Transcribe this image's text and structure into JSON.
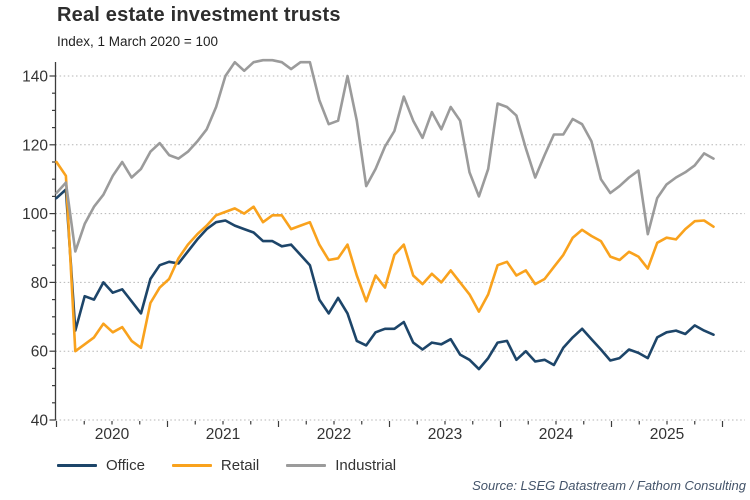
{
  "header": {
    "title": "Real estate investment trusts",
    "subtitle": "Index, 1 March 2020 = 100"
  },
  "source": "Source: LSEG Datastream / Fathom Consulting",
  "colors": {
    "office": "#1d4569",
    "retail": "#f9a21d",
    "industrial": "#9b9b9b",
    "grid": "#b5b5b5",
    "axis": "#3c3c3c",
    "tick_label": "#333333",
    "source_text": "#44546a"
  },
  "legend": [
    {
      "label": "Office",
      "color_key": "office"
    },
    {
      "label": "Retail",
      "color_key": "retail"
    },
    {
      "label": "Industrial",
      "color_key": "industrial"
    }
  ],
  "chart_data": {
    "type": "line",
    "title": "Real estate investment trusts",
    "subtitle": "Index, 1 March 2020 = 100",
    "x_unit": "month",
    "x_start": "2020-01",
    "x_end": "2025-11",
    "x_axis": {
      "tick_years": [
        2020,
        2021,
        2022,
        2023,
        2024,
        2025
      ],
      "minor_ticks": "quarterly"
    },
    "y_axis": {
      "ticks": [
        40,
        60,
        80,
        100,
        120,
        140
      ],
      "minor_step": 5,
      "range": [
        40,
        144.6
      ],
      "note": "Industrial series clipped at top of plot (>144) late 2021 to early 2022"
    },
    "grid": "horizontal-dotted",
    "legend_position": "bottom",
    "series": [
      {
        "name": "Office",
        "color_key": "office",
        "values": [
          104.5,
          107,
          66,
          76,
          75,
          80,
          77,
          78,
          74.5,
          71,
          81,
          85,
          86,
          85.5,
          89,
          92.5,
          95.5,
          97.5,
          98,
          96.5,
          95.5,
          94.5,
          92,
          92,
          90.5,
          91,
          88,
          85,
          75,
          71,
          75.5,
          71,
          63,
          61.7,
          65.5,
          66.5,
          66.5,
          68.5,
          62.5,
          60.5,
          62.5,
          62,
          63.5,
          59,
          57.5,
          54.8,
          58,
          62.5,
          63,
          57.5,
          60,
          57,
          57.5,
          56,
          61,
          64,
          66.5,
          63.5,
          60.5,
          57.3,
          58,
          60.5,
          59.5,
          58,
          64,
          65.5,
          66,
          65,
          67.5,
          66,
          64.8
        ]
      },
      {
        "name": "Retail",
        "color_key": "retail",
        "values": [
          115,
          111,
          60,
          62,
          64,
          68,
          65.5,
          67,
          63,
          61,
          74,
          78.5,
          81,
          87,
          91,
          94,
          96.5,
          99.5,
          100.5,
          101.5,
          100,
          102,
          97.5,
          99.5,
          99.5,
          95.5,
          96.5,
          97.5,
          91,
          86.5,
          87,
          91,
          82,
          74.5,
          82,
          78.5,
          88,
          91,
          82,
          79.5,
          82.5,
          80,
          83.5,
          80,
          76.5,
          71.5,
          76.5,
          85,
          86,
          82,
          83.5,
          79.5,
          81,
          84.5,
          88,
          93,
          95.3,
          93.5,
          92,
          87.5,
          86.5,
          88.9,
          87.5,
          84,
          91.5,
          93,
          92.5,
          95.5,
          97.8,
          98,
          96.2
        ]
      },
      {
        "name": "Industrial",
        "color_key": "industrial",
        "values": [
          106,
          109,
          89,
          97,
          102,
          105.5,
          111,
          115,
          110.5,
          113,
          118,
          120.5,
          117,
          116,
          118,
          121,
          124.5,
          131,
          140,
          144,
          141.5,
          144,
          145,
          145,
          144,
          142,
          144,
          144,
          133,
          126,
          127,
          140,
          127,
          108,
          113,
          119.5,
          124,
          134,
          127,
          122,
          129.5,
          124.5,
          131,
          127,
          112,
          105,
          113,
          132,
          131,
          128.5,
          119,
          110.5,
          117,
          123,
          123,
          127.5,
          126,
          121,
          110,
          106,
          108,
          110.5,
          112.5,
          94,
          104.5,
          108.5,
          110.5,
          112,
          114,
          117.5,
          116
        ]
      }
    ]
  }
}
